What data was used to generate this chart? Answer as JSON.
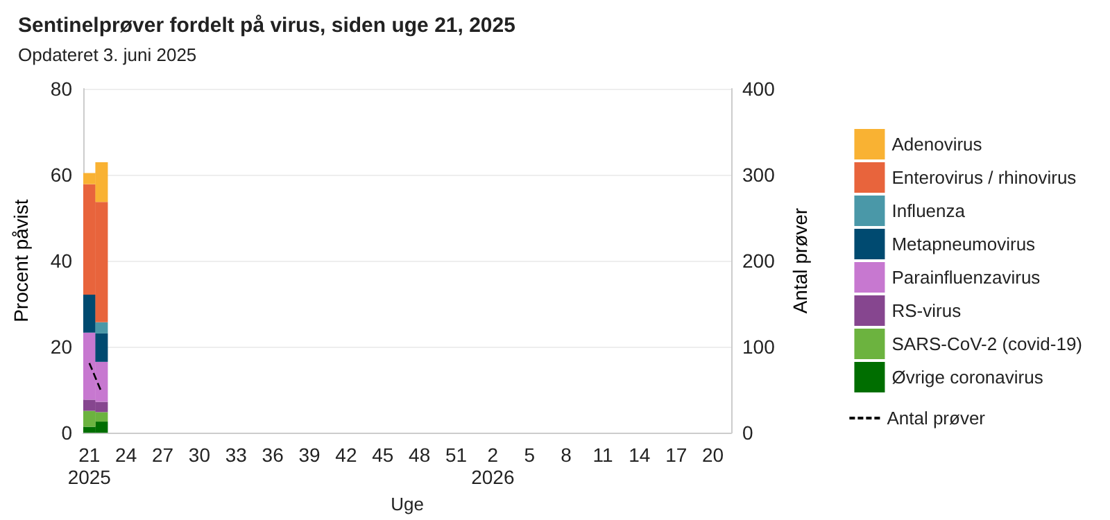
{
  "chart_data": {
    "type": "bar",
    "title": "Sentinelprøver fordelt på virus, siden uge 21, 2025",
    "subtitle": "Opdateret 3. juni 2025",
    "xlabel": "Uge",
    "ylabel": "Procent påvist",
    "y2label": "Antal prøver",
    "categories": [
      "21\n2025",
      null,
      null,
      "24",
      null,
      null,
      "27",
      null,
      null,
      "30",
      null,
      null,
      "33",
      null,
      null,
      "36",
      null,
      null,
      "39",
      null,
      null,
      "42",
      null,
      null,
      "45",
      null,
      null,
      "48",
      null,
      null,
      "51",
      null,
      null,
      "2\n2026",
      null,
      null,
      "5",
      null,
      null,
      "8",
      null,
      null,
      "11",
      null,
      null,
      "14",
      null,
      null,
      "17",
      null,
      null,
      "20",
      null
    ],
    "stacked": true,
    "series": [
      {
        "name": "Øvrige coronavirus",
        "color": "#006e00",
        "values": [
          1.4,
          2.6,
          null,
          null,
          null,
          null,
          null,
          null,
          null,
          null,
          null,
          null,
          null,
          null,
          null,
          null,
          null,
          null,
          null,
          null,
          null,
          null,
          null,
          null,
          null,
          null,
          null,
          null,
          null,
          null,
          null,
          null,
          null,
          null,
          null,
          null,
          null,
          null,
          null,
          null,
          null,
          null,
          null,
          null,
          null,
          null,
          null,
          null,
          null,
          null,
          null,
          null,
          null
        ]
      },
      {
        "name": "SARS-CoV-2 (covid-19)",
        "color": "#6cb33f",
        "values": [
          3.7,
          2.2,
          null,
          null,
          null,
          null,
          null,
          null,
          null,
          null,
          null,
          null,
          null,
          null,
          null,
          null,
          null,
          null,
          null,
          null,
          null,
          null,
          null,
          null,
          null,
          null,
          null,
          null,
          null,
          null,
          null,
          null,
          null,
          null,
          null,
          null,
          null,
          null,
          null,
          null,
          null,
          null,
          null,
          null,
          null,
          null,
          null,
          null,
          null,
          null,
          null,
          null,
          null
        ]
      },
      {
        "name": "RS-virus",
        "color": "#86468f",
        "values": [
          2.6,
          2.4,
          null,
          null,
          null,
          null,
          null,
          null,
          null,
          null,
          null,
          null,
          null,
          null,
          null,
          null,
          null,
          null,
          null,
          null,
          null,
          null,
          null,
          null,
          null,
          null,
          null,
          null,
          null,
          null,
          null,
          null,
          null,
          null,
          null,
          null,
          null,
          null,
          null,
          null,
          null,
          null,
          null,
          null,
          null,
          null,
          null,
          null,
          null,
          null,
          null,
          null,
          null
        ]
      },
      {
        "name": "Parainfluenzavirus",
        "color": "#c778d0",
        "values": [
          15.6,
          9.3,
          null,
          null,
          null,
          null,
          null,
          null,
          null,
          null,
          null,
          null,
          null,
          null,
          null,
          null,
          null,
          null,
          null,
          null,
          null,
          null,
          null,
          null,
          null,
          null,
          null,
          null,
          null,
          null,
          null,
          null,
          null,
          null,
          null,
          null,
          null,
          null,
          null,
          null,
          null,
          null,
          null,
          null,
          null,
          null,
          null,
          null,
          null,
          null,
          null,
          null,
          null
        ]
      },
      {
        "name": "Metapneumovirus",
        "color": "#004a70",
        "values": [
          8.8,
          6.6,
          null,
          null,
          null,
          null,
          null,
          null,
          null,
          null,
          null,
          null,
          null,
          null,
          null,
          null,
          null,
          null,
          null,
          null,
          null,
          null,
          null,
          null,
          null,
          null,
          null,
          null,
          null,
          null,
          null,
          null,
          null,
          null,
          null,
          null,
          null,
          null,
          null,
          null,
          null,
          null,
          null,
          null,
          null,
          null,
          null,
          null,
          null,
          null,
          null,
          null,
          null
        ]
      },
      {
        "name": "Influenza",
        "color": "#4a98a8",
        "values": [
          0,
          2.6,
          null,
          null,
          null,
          null,
          null,
          null,
          null,
          null,
          null,
          null,
          null,
          null,
          null,
          null,
          null,
          null,
          null,
          null,
          null,
          null,
          null,
          null,
          null,
          null,
          null,
          null,
          null,
          null,
          null,
          null,
          null,
          null,
          null,
          null,
          null,
          null,
          null,
          null,
          null,
          null,
          null,
          null,
          null,
          null,
          null,
          null,
          null,
          null,
          null,
          null,
          null
        ]
      },
      {
        "name": "Enterovirus / rhinovirus",
        "color": "#e8643c",
        "values": [
          25.7,
          28,
          null,
          null,
          null,
          null,
          null,
          null,
          null,
          null,
          null,
          null,
          null,
          null,
          null,
          null,
          null,
          null,
          null,
          null,
          null,
          null,
          null,
          null,
          null,
          null,
          null,
          null,
          null,
          null,
          null,
          null,
          null,
          null,
          null,
          null,
          null,
          null,
          null,
          null,
          null,
          null,
          null,
          null,
          null,
          null,
          null,
          null,
          null,
          null,
          null,
          null,
          null
        ]
      },
      {
        "name": "Adenovirus",
        "color": "#f9b233",
        "values": [
          2.6,
          9.2,
          null,
          null,
          null,
          null,
          null,
          null,
          null,
          null,
          null,
          null,
          null,
          null,
          null,
          null,
          null,
          null,
          null,
          null,
          null,
          null,
          null,
          null,
          null,
          null,
          null,
          null,
          null,
          null,
          null,
          null,
          null,
          null,
          null,
          null,
          null,
          null,
          null,
          null,
          null,
          null,
          null,
          null,
          null,
          null,
          null,
          null,
          null,
          null,
          null,
          null,
          null
        ]
      },
      {
        "name": "Antal prøver",
        "type": "line",
        "axis": "y2",
        "color": "#000000",
        "line_style": "dashed",
        "values": [
          81,
          47,
          null,
          null,
          null,
          null,
          null,
          null,
          null,
          null,
          null,
          null,
          null,
          null,
          null,
          null,
          null,
          null,
          null,
          null,
          null,
          null,
          null,
          null,
          null,
          null,
          null,
          null,
          null,
          null,
          null,
          null,
          null,
          null,
          null,
          null,
          null,
          null,
          null,
          null,
          null,
          null,
          null,
          null,
          null,
          null,
          null,
          null,
          null,
          null,
          null,
          null,
          null
        ]
      }
    ],
    "ylim": [
      0,
      80
    ],
    "yticks": [
      0,
      20,
      40,
      60,
      80
    ],
    "y2lim": [
      0,
      400
    ],
    "y2ticks": [
      0,
      100,
      200,
      300,
      400
    ],
    "grid": "y",
    "legend": "right"
  }
}
